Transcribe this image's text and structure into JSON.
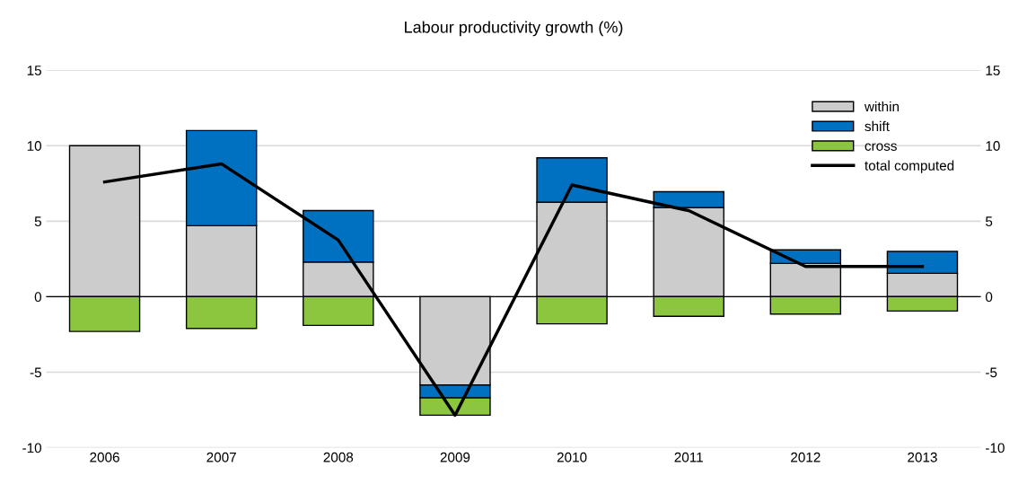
{
  "chart_data": {
    "type": "bar",
    "title": "Labour productivity growth (%)",
    "stacked": true,
    "categories": [
      "2006",
      "2007",
      "2008",
      "2009",
      "2010",
      "2011",
      "2012",
      "2013"
    ],
    "series": [
      {
        "name": "within",
        "color": "#cccccc",
        "values": [
          10.0,
          4.7,
          2.3,
          -5.85,
          6.25,
          5.9,
          2.2,
          1.55
        ]
      },
      {
        "name": "shift",
        "color": "#0070c0",
        "values": [
          null,
          6.3,
          3.4,
          -0.85,
          2.95,
          1.05,
          0.9,
          1.45
        ]
      },
      {
        "name": "cross",
        "color": "#8cc63f",
        "values": [
          -2.3,
          -2.1,
          -1.9,
          -1.15,
          -1.8,
          -1.3,
          -1.15,
          -0.95
        ]
      },
      {
        "name": "total computed",
        "type": "line",
        "color": "#000000",
        "values": [
          7.6,
          8.8,
          3.75,
          -7.85,
          7.4,
          5.7,
          2.0,
          2.0
        ]
      }
    ],
    "ylim": [
      -10,
      15
    ],
    "yticks": [
      -10,
      -5,
      0,
      5,
      10,
      15
    ],
    "y2lim": [
      -10,
      15
    ],
    "y2ticks": [
      -10,
      -5,
      0,
      5,
      10,
      15
    ],
    "grid": "y",
    "legend": "top right",
    "marker": "none",
    "line_style": "solid"
  }
}
